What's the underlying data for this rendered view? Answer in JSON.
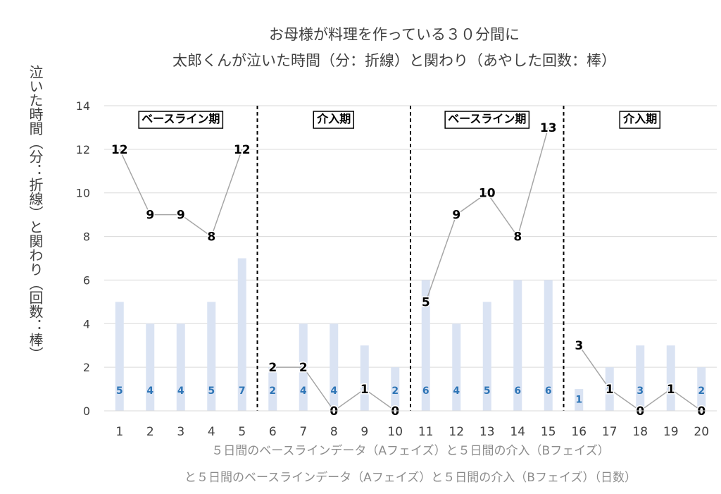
{
  "chart_data": {
    "type": "bar",
    "title_lines": [
      "お母様が料理を作っている３０分間に",
      "太郎くんが泣いた時間（分：折線）と関わり（あやした回数：棒）"
    ],
    "ylabel": "泣いた時間（分：折線）と関わり（回数：棒）",
    "xlabel_lines": [
      "５日間のベースラインデータ（Aフェイズ）と５日間の介入（Bフェイズ）",
      "と５日間のベースラインデータ（Aフェイズ）と５日間の介入（Bフェイズ）（日数）"
    ],
    "categories": [
      "1",
      "2",
      "3",
      "4",
      "5",
      "6",
      "7",
      "8",
      "9",
      "10",
      "11",
      "12",
      "13",
      "14",
      "15",
      "16",
      "17",
      "18",
      "19",
      "20"
    ],
    "series": [
      {
        "type": "bar",
        "values": [
          5,
          4,
          4,
          5,
          7,
          2,
          4,
          4,
          3,
          2,
          6,
          4,
          5,
          6,
          6,
          1,
          2,
          3,
          3,
          2
        ]
      },
      {
        "type": "line",
        "values": [
          12,
          9,
          9,
          8,
          12,
          2,
          2,
          0,
          1,
          0,
          5,
          9,
          10,
          8,
          13,
          3,
          1,
          0,
          1,
          0
        ]
      }
    ],
    "ylim": [
      0,
      14
    ],
    "yticks": [
      0,
      2,
      4,
      6,
      8,
      10,
      12,
      14
    ],
    "grid": true,
    "legend": "none",
    "phases": [
      {
        "label": "ベースライン期",
        "start": 1,
        "end": 5
      },
      {
        "label": "介入期",
        "start": 6,
        "end": 10
      },
      {
        "label": "ベースライン期",
        "start": 11,
        "end": 15
      },
      {
        "label": "介入期",
        "start": 16,
        "end": 20
      }
    ],
    "phase_dividers_after": [
      5,
      10,
      15
    ],
    "colors": {
      "bar": "#dae3f3",
      "bar_label": "#2e75b6",
      "line": "#a6a6a6",
      "grid": "#d9d9d9",
      "divider": "#000000"
    }
  }
}
